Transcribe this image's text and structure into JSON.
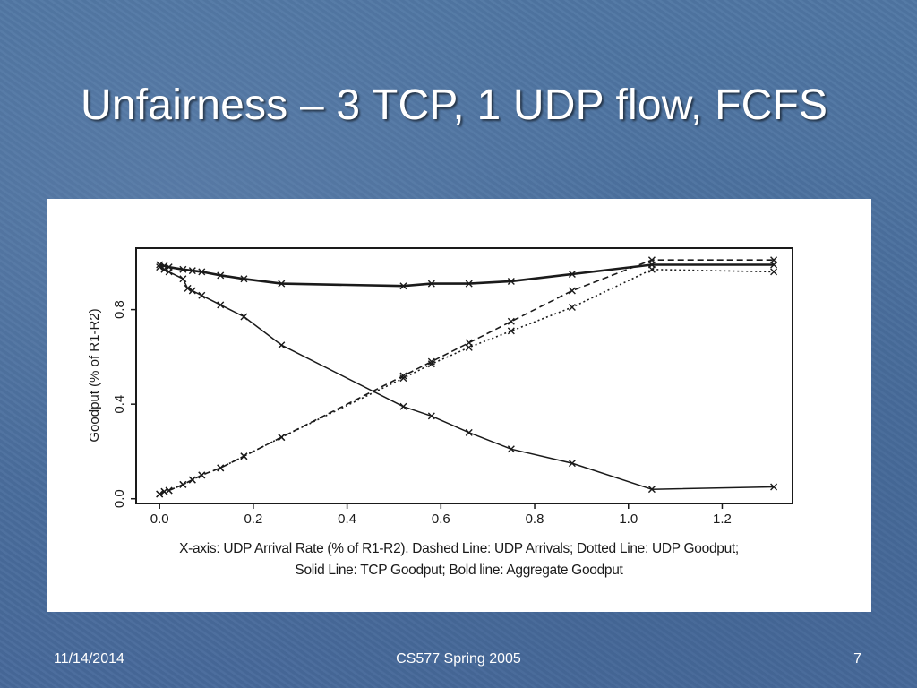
{
  "slide": {
    "title": "Unfairness – 3 TCP, 1 UDP flow, FCFS",
    "footer_date": "11/14/2014",
    "footer_course": "CS577 Spring 2005",
    "footer_page": "7",
    "caption_line1": "X-axis: UDP Arrival Rate (% of R1-R2).  Dashed Line: UDP Arrivals; Dotted Line: UDP Goodput;",
    "caption_line2": "Solid Line: TCP Goodput; Bold line: Aggregate Goodput"
  },
  "colors": {
    "background": "#4a6f9b",
    "panel": "#ffffff",
    "ink": "#1a1a1a"
  },
  "chart_data": {
    "type": "line",
    "xlabel": "",
    "ylabel": "Goodput (% of R1-R2)",
    "xlim": [
      -0.05,
      1.35
    ],
    "ylim": [
      -0.02,
      1.06
    ],
    "x_ticks": [
      "0.0",
      "0.2",
      "0.4",
      "0.6",
      "0.8",
      "1.0",
      "1.2"
    ],
    "x_tick_values": [
      0.0,
      0.2,
      0.4,
      0.6,
      0.8,
      1.0,
      1.2
    ],
    "y_ticks": [
      "0.0",
      "0.4",
      "0.8"
    ],
    "y_tick_values": [
      0.0,
      0.4,
      0.8
    ],
    "grid": false,
    "marker": "x",
    "series": [
      {
        "name": "Dashed Line: UDP Arrivals",
        "style": "dashed",
        "points": [
          [
            0.0,
            0.02
          ],
          [
            0.01,
            0.03
          ],
          [
            0.02,
            0.035
          ],
          [
            0.05,
            0.06
          ],
          [
            0.07,
            0.08
          ],
          [
            0.09,
            0.1
          ],
          [
            0.13,
            0.13
          ],
          [
            0.18,
            0.18
          ],
          [
            0.26,
            0.26
          ],
          [
            0.52,
            0.52
          ],
          [
            0.58,
            0.58
          ],
          [
            0.66,
            0.66
          ],
          [
            0.75,
            0.75
          ],
          [
            0.88,
            0.88
          ],
          [
            1.05,
            1.01
          ],
          [
            1.31,
            1.01
          ]
        ]
      },
      {
        "name": "Dotted Line: UDP Goodput",
        "style": "dotted",
        "points": [
          [
            0.0,
            0.02
          ],
          [
            0.01,
            0.03
          ],
          [
            0.02,
            0.035
          ],
          [
            0.05,
            0.06
          ],
          [
            0.07,
            0.08
          ],
          [
            0.09,
            0.1
          ],
          [
            0.13,
            0.13
          ],
          [
            0.18,
            0.18
          ],
          [
            0.26,
            0.26
          ],
          [
            0.52,
            0.51
          ],
          [
            0.58,
            0.57
          ],
          [
            0.66,
            0.64
          ],
          [
            0.75,
            0.71
          ],
          [
            0.88,
            0.81
          ],
          [
            1.05,
            0.97
          ],
          [
            1.31,
            0.96
          ]
        ]
      },
      {
        "name": "Solid Line: TCP Goodput",
        "style": "solid",
        "points": [
          [
            0.0,
            0.98
          ],
          [
            0.01,
            0.97
          ],
          [
            0.02,
            0.96
          ],
          [
            0.05,
            0.93
          ],
          [
            0.06,
            0.89
          ],
          [
            0.07,
            0.88
          ],
          [
            0.09,
            0.86
          ],
          [
            0.13,
            0.82
          ],
          [
            0.18,
            0.77
          ],
          [
            0.26,
            0.65
          ],
          [
            0.52,
            0.39
          ],
          [
            0.58,
            0.35
          ],
          [
            0.66,
            0.28
          ],
          [
            0.75,
            0.21
          ],
          [
            0.88,
            0.15
          ],
          [
            1.05,
            0.04
          ],
          [
            1.31,
            0.05
          ]
        ]
      },
      {
        "name": "Bold line: Aggregate Goodput",
        "style": "bold",
        "points": [
          [
            0.0,
            0.99
          ],
          [
            0.01,
            0.985
          ],
          [
            0.02,
            0.98
          ],
          [
            0.05,
            0.97
          ],
          [
            0.07,
            0.965
          ],
          [
            0.09,
            0.96
          ],
          [
            0.13,
            0.945
          ],
          [
            0.18,
            0.93
          ],
          [
            0.26,
            0.91
          ],
          [
            0.52,
            0.9
          ],
          [
            0.58,
            0.91
          ],
          [
            0.66,
            0.91
          ],
          [
            0.75,
            0.92
          ],
          [
            0.88,
            0.95
          ],
          [
            1.05,
            0.99
          ],
          [
            1.31,
            0.99
          ]
        ]
      }
    ]
  }
}
